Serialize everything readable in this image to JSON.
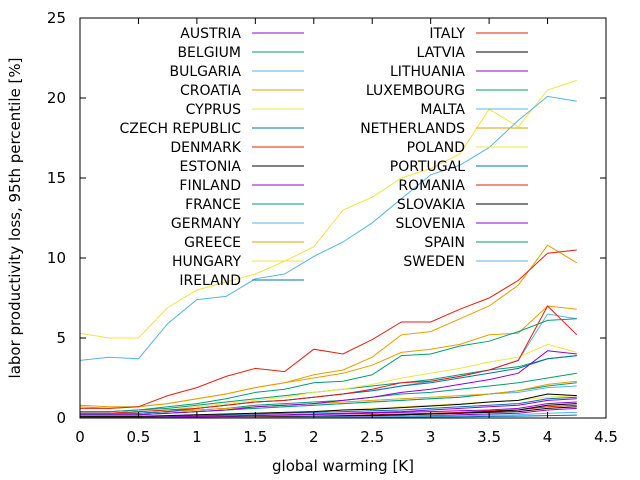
{
  "chart_data": {
    "type": "line",
    "xlabel": "global warming [K]",
    "ylabel": "labor productivity loss, 95th percentile [%]",
    "xlim": [
      0,
      4.5
    ],
    "ylim": [
      0,
      25
    ],
    "xticks": [
      {
        "v": 0,
        "label": "0"
      },
      {
        "v": 0.5,
        "label": "0.5"
      },
      {
        "v": 1,
        "label": "1"
      },
      {
        "v": 1.5,
        "label": "1.5"
      },
      {
        "v": 2,
        "label": "2"
      },
      {
        "v": 2.5,
        "label": "2.5"
      },
      {
        "v": 3,
        "label": "3"
      },
      {
        "v": 3.5,
        "label": "3.5"
      },
      {
        "v": 4,
        "label": "4"
      },
      {
        "v": 4.5,
        "label": "4.5"
      }
    ],
    "yticks": [
      {
        "v": 0,
        "label": "0"
      },
      {
        "v": 5,
        "label": "5"
      },
      {
        "v": 10,
        "label": "10"
      },
      {
        "v": 15,
        "label": "15"
      },
      {
        "v": 20,
        "label": "20"
      },
      {
        "v": 25,
        "label": "25"
      }
    ],
    "grid": false,
    "legend_position": "top, two columns",
    "x": [
      0,
      0.25,
      0.5,
      0.75,
      1,
      1.25,
      1.5,
      1.75,
      2,
      2.25,
      2.5,
      2.75,
      3,
      3.25,
      3.5,
      3.75,
      4,
      4.25
    ],
    "series": [
      {
        "name": "AUSTRIA",
        "color": "#9400d3",
        "values": [
          0.05,
          0.05,
          0.05,
          0.07,
          0.1,
          0.12,
          0.15,
          0.18,
          0.22,
          0.25,
          0.3,
          0.35,
          0.4,
          0.45,
          0.5,
          0.6,
          0.9,
          1.0
        ]
      },
      {
        "name": "BELGIUM",
        "color": "#009e73",
        "values": [
          0.3,
          0.3,
          0.3,
          0.4,
          0.5,
          0.6,
          0.8,
          0.9,
          1.0,
          1.1,
          1.3,
          1.5,
          1.6,
          1.8,
          2.0,
          2.2,
          2.5,
          2.8
        ]
      },
      {
        "name": "BULGARIA",
        "color": "#56b4e9",
        "values": [
          0.2,
          0.25,
          0.3,
          0.4,
          0.6,
          0.8,
          1.0,
          1.1,
          1.3,
          1.5,
          1.7,
          2.0,
          2.3,
          2.6,
          3.0,
          3.6,
          6.5,
          6.2
        ]
      },
      {
        "name": "CROATIA",
        "color": "#e69f00",
        "values": [
          0.7,
          0.6,
          0.7,
          0.9,
          1.2,
          1.5,
          1.9,
          2.2,
          2.5,
          2.8,
          3.3,
          4.1,
          4.3,
          4.6,
          5.2,
          5.3,
          7.0,
          6.8
        ]
      },
      {
        "name": "CYPRUS",
        "color": "#f0e442",
        "values": [
          5.3,
          5.0,
          5.0,
          6.9,
          8.0,
          8.5,
          9.0,
          9.8,
          10.7,
          13.0,
          13.8,
          15.0,
          15.6,
          16.5,
          19.3,
          18.2,
          20.5,
          21.1
        ]
      },
      {
        "name": "CZECH REPUBLIC",
        "color": "#0072b2",
        "values": [
          0.1,
          0.1,
          0.1,
          0.12,
          0.15,
          0.2,
          0.25,
          0.3,
          0.35,
          0.4,
          0.45,
          0.5,
          0.6,
          0.7,
          0.8,
          0.9,
          1.2,
          1.3
        ]
      },
      {
        "name": "DENMARK",
        "color": "#e51e10",
        "values": [
          0.0,
          0.0,
          0.0,
          0.02,
          0.03,
          0.05,
          0.08,
          0.1,
          0.12,
          0.15,
          0.2,
          0.25,
          0.3,
          0.35,
          0.45,
          0.5,
          0.7,
          0.8
        ]
      },
      {
        "name": "ESTONIA",
        "color": "#000000",
        "values": [
          0.0,
          0.0,
          0.0,
          0.02,
          0.03,
          0.04,
          0.05,
          0.07,
          0.1,
          0.12,
          0.15,
          0.2,
          0.25,
          0.3,
          0.35,
          0.4,
          0.6,
          0.7
        ]
      },
      {
        "name": "FINLAND",
        "color": "#9400d3",
        "values": [
          0.0,
          0.0,
          0.0,
          0.01,
          0.02,
          0.03,
          0.04,
          0.05,
          0.07,
          0.09,
          0.1,
          0.12,
          0.15,
          0.2,
          0.25,
          0.3,
          0.5,
          0.6
        ]
      },
      {
        "name": "FRANCE",
        "color": "#009e73",
        "values": [
          0.4,
          0.4,
          0.5,
          0.6,
          0.8,
          1.0,
          1.2,
          1.4,
          1.6,
          1.8,
          2.0,
          2.2,
          2.4,
          2.7,
          3.0,
          3.2,
          3.7,
          3.9
        ]
      },
      {
        "name": "GERMANY",
        "color": "#56b4e9",
        "values": [
          0.2,
          0.2,
          0.2,
          0.3,
          0.4,
          0.5,
          0.6,
          0.7,
          0.8,
          0.9,
          1.0,
          1.1,
          1.2,
          1.3,
          1.5,
          1.6,
          1.9,
          2.0
        ]
      },
      {
        "name": "GREECE",
        "color": "#e69f00",
        "values": [
          0.8,
          0.7,
          0.7,
          0.9,
          1.2,
          1.5,
          1.9,
          2.2,
          2.7,
          3.0,
          3.8,
          5.2,
          5.4,
          6.2,
          7.0,
          8.3,
          10.8,
          9.7
        ]
      },
      {
        "name": "HUNGARY",
        "color": "#f0e442",
        "values": [
          0.3,
          0.3,
          0.4,
          0.5,
          0.7,
          0.9,
          1.1,
          1.3,
          1.6,
          1.8,
          2.1,
          2.5,
          2.8,
          3.1,
          3.5,
          3.8,
          4.6,
          4.1
        ]
      },
      {
        "name": "IRELAND",
        "color": "#0072b2",
        "values": [
          0.0,
          0.0,
          0.0,
          0.0,
          0.01,
          0.01,
          0.02,
          0.02,
          0.03,
          0.04,
          0.05,
          0.06,
          0.07,
          0.08,
          0.1,
          0.12,
          0.15,
          0.18
        ]
      },
      {
        "name": "ITALY",
        "color": "#e51e10",
        "values": [
          0.6,
          0.6,
          0.7,
          1.4,
          1.9,
          2.6,
          3.1,
          2.9,
          4.3,
          4.0,
          4.9,
          6.0,
          6.0,
          6.8,
          7.5,
          8.6,
          10.3,
          10.5
        ]
      },
      {
        "name": "LATVIA",
        "color": "#000000",
        "values": [
          0.0,
          0.0,
          0.0,
          0.02,
          0.03,
          0.05,
          0.06,
          0.08,
          0.1,
          0.13,
          0.17,
          0.2,
          0.25,
          0.3,
          0.4,
          0.5,
          0.8,
          0.9
        ]
      },
      {
        "name": "LITHUANIA",
        "color": "#9400d3",
        "values": [
          0.05,
          0.05,
          0.05,
          0.07,
          0.1,
          0.13,
          0.17,
          0.2,
          0.25,
          0.3,
          0.35,
          0.4,
          0.5,
          0.6,
          0.7,
          0.8,
          1.1,
          1.2
        ]
      },
      {
        "name": "LUXEMBOURG",
        "color": "#009e73",
        "values": [
          0.2,
          0.2,
          0.2,
          0.3,
          0.4,
          0.5,
          0.6,
          0.7,
          0.8,
          0.9,
          1.0,
          1.1,
          1.2,
          1.3,
          1.5,
          1.7,
          2.0,
          2.2
        ]
      },
      {
        "name": "MALTA",
        "color": "#56b4e9",
        "values": [
          3.6,
          3.8,
          3.7,
          5.9,
          7.4,
          7.6,
          8.7,
          9.0,
          10.1,
          11.0,
          12.2,
          13.7,
          15.2,
          15.8,
          16.9,
          18.6,
          20.1,
          19.8
        ]
      },
      {
        "name": "NETHERLANDS",
        "color": "#e69f00",
        "values": [
          0.3,
          0.3,
          0.3,
          0.4,
          0.5,
          0.6,
          0.7,
          0.8,
          0.9,
          1.0,
          1.1,
          1.2,
          1.3,
          1.4,
          1.5,
          1.7,
          2.1,
          2.3
        ]
      },
      {
        "name": "POLAND",
        "color": "#f0e442",
        "values": [
          0.1,
          0.1,
          0.1,
          0.15,
          0.2,
          0.25,
          0.3,
          0.35,
          0.4,
          0.5,
          0.6,
          0.7,
          0.8,
          0.9,
          1.0,
          1.1,
          1.3,
          1.4
        ]
      },
      {
        "name": "PORTUGAL",
        "color": "#0072b2",
        "values": [
          0.3,
          0.3,
          0.3,
          0.4,
          0.6,
          0.8,
          1.0,
          1.1,
          1.3,
          1.5,
          1.7,
          2.0,
          2.2,
          2.5,
          2.8,
          3.1,
          3.7,
          3.9
        ]
      },
      {
        "name": "ROMANIA",
        "color": "#e51e10",
        "values": [
          0.3,
          0.3,
          0.4,
          0.5,
          0.6,
          0.8,
          1.0,
          1.1,
          1.3,
          1.5,
          1.8,
          2.2,
          2.3,
          2.6,
          3.0,
          3.6,
          7.0,
          5.2
        ]
      },
      {
        "name": "SLOVAKIA",
        "color": "#000000",
        "values": [
          0.1,
          0.1,
          0.1,
          0.15,
          0.2,
          0.25,
          0.3,
          0.35,
          0.4,
          0.5,
          0.55,
          0.65,
          0.75,
          0.85,
          1.0,
          1.1,
          1.5,
          1.4
        ]
      },
      {
        "name": "SLOVENIA",
        "color": "#9400d3",
        "values": [
          0.2,
          0.2,
          0.2,
          0.3,
          0.4,
          0.5,
          0.7,
          0.8,
          0.9,
          1.1,
          1.3,
          1.6,
          1.8,
          2.1,
          2.4,
          2.8,
          4.2,
          4.0
        ]
      },
      {
        "name": "SPAIN",
        "color": "#009e73",
        "values": [
          0.4,
          0.4,
          0.5,
          0.7,
          0.9,
          1.2,
          1.6,
          1.8,
          2.2,
          2.3,
          2.7,
          3.9,
          4.0,
          4.5,
          4.8,
          5.4,
          6.1,
          6.2
        ]
      },
      {
        "name": "SWEDEN",
        "color": "#56b4e9",
        "values": [
          0.0,
          0.0,
          0.0,
          0.01,
          0.02,
          0.03,
          0.04,
          0.05,
          0.06,
          0.07,
          0.08,
          0.1,
          0.12,
          0.14,
          0.17,
          0.2,
          0.3,
          0.35
        ]
      }
    ]
  }
}
